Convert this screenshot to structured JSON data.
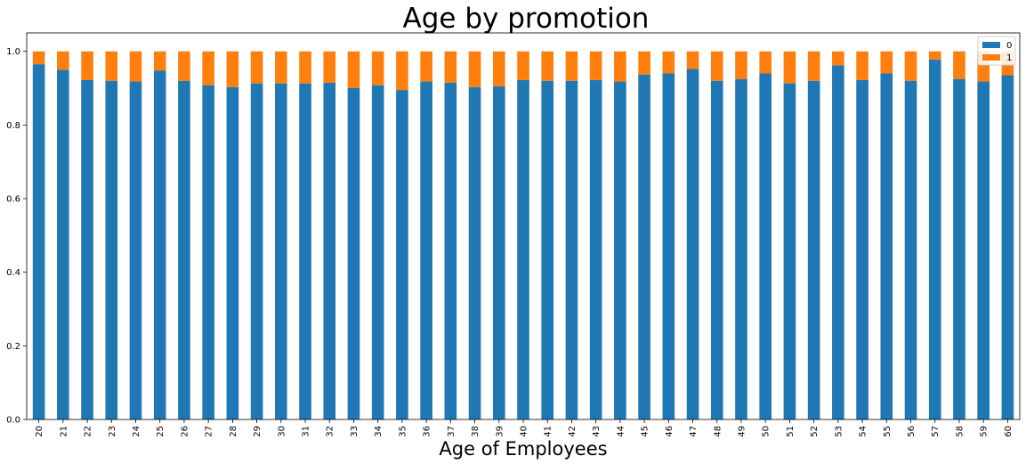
{
  "chart_data": {
    "type": "bar",
    "stacked": true,
    "title": "Age by promotion",
    "xlabel": "Age of Employees",
    "ylabel": "",
    "ylim": [
      0,
      1.05
    ],
    "yticks": [
      "0.0",
      "0.2",
      "0.4",
      "0.6",
      "0.8",
      "1.0"
    ],
    "grid": false,
    "legend_position": "top-right",
    "categories": [
      "20",
      "21",
      "22",
      "23",
      "24",
      "25",
      "26",
      "27",
      "28",
      "29",
      "30",
      "31",
      "32",
      "33",
      "34",
      "35",
      "36",
      "37",
      "38",
      "39",
      "40",
      "41",
      "42",
      "43",
      "44",
      "45",
      "46",
      "47",
      "48",
      "49",
      "50",
      "51",
      "52",
      "53",
      "54",
      "55",
      "56",
      "57",
      "58",
      "59",
      "60"
    ],
    "series": [
      {
        "name": "0",
        "color": "#1f77b4",
        "values": [
          0.965,
          0.95,
          0.922,
          0.92,
          0.918,
          0.948,
          0.92,
          0.908,
          0.903,
          0.913,
          0.913,
          0.913,
          0.915,
          0.9,
          0.908,
          0.895,
          0.918,
          0.915,
          0.903,
          0.905,
          0.922,
          0.92,
          0.92,
          0.922,
          0.918,
          0.937,
          0.94,
          0.952,
          0.92,
          0.925,
          0.94,
          0.913,
          0.92,
          0.962,
          0.922,
          0.94,
          0.92,
          0.978,
          0.925,
          0.918,
          0.935
        ]
      },
      {
        "name": "1",
        "color": "#ff7f0e",
        "values": [
          0.035,
          0.05,
          0.078,
          0.08,
          0.082,
          0.052,
          0.08,
          0.092,
          0.097,
          0.087,
          0.087,
          0.087,
          0.085,
          0.1,
          0.092,
          0.105,
          0.082,
          0.085,
          0.097,
          0.095,
          0.078,
          0.08,
          0.08,
          0.078,
          0.082,
          0.063,
          0.06,
          0.048,
          0.08,
          0.075,
          0.06,
          0.087,
          0.08,
          0.038,
          0.078,
          0.06,
          0.08,
          0.022,
          0.075,
          0.082,
          0.065
        ]
      }
    ]
  }
}
